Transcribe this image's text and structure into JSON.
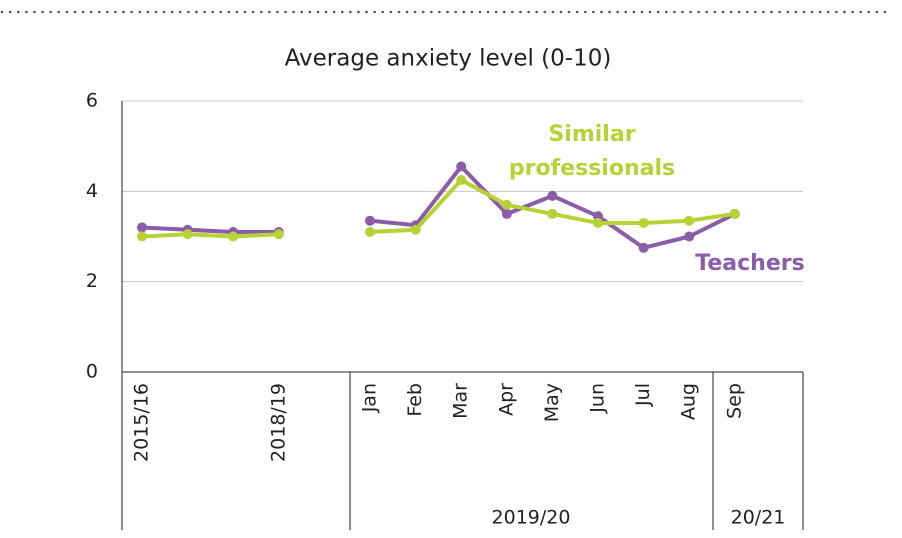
{
  "chart_data": {
    "type": "line",
    "title": "Average anxiety level (0-10)",
    "categories": [
      "2015/16",
      null,
      null,
      "2018/19",
      null,
      "Jan",
      "Feb",
      "Mar",
      "Apr",
      "May",
      "Jun",
      "Jul",
      "Aug",
      "Sep"
    ],
    "groups": [
      "2019/20",
      "20/21"
    ],
    "series": [
      {
        "name": "Teachers",
        "color": "#8b5ca8",
        "values": [
          3.2,
          3.15,
          3.1,
          3.1,
          null,
          3.35,
          3.25,
          4.55,
          3.5,
          3.9,
          3.45,
          2.75,
          3.0,
          3.5
        ]
      },
      {
        "name": "Similar professionals",
        "color": "#b5d334",
        "values": [
          3.0,
          3.05,
          3.0,
          3.05,
          null,
          3.1,
          3.15,
          4.25,
          3.7,
          3.5,
          3.3,
          3.3,
          3.35,
          3.5
        ]
      }
    ],
    "ylim": [
      0,
      6
    ],
    "yticks": [
      0,
      2,
      4,
      6
    ],
    "grid": true
  }
}
